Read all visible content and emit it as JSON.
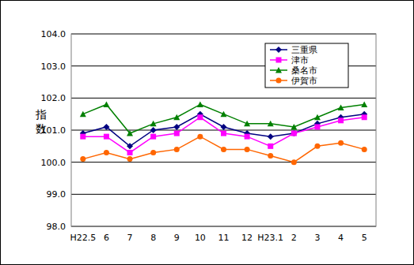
{
  "chart_data": {
    "type": "line",
    "y_label": "指数",
    "categories": [
      "H22.5",
      "6",
      "7",
      "8",
      "9",
      "10",
      "11",
      "12",
      "H23.1",
      "2",
      "3",
      "4",
      "5"
    ],
    "series": [
      {
        "name": "三重県",
        "color": "#000080",
        "marker": "diamond",
        "values": [
          100.9,
          101.1,
          100.5,
          101.0,
          101.1,
          101.5,
          101.1,
          100.9,
          100.8,
          100.9,
          101.2,
          101.4,
          101.5
        ]
      },
      {
        "name": "津市",
        "color": "#ff00ff",
        "marker": "square",
        "values": [
          100.8,
          100.8,
          100.3,
          100.8,
          100.9,
          101.4,
          100.9,
          100.8,
          100.5,
          100.9,
          101.1,
          101.3,
          101.4
        ]
      },
      {
        "name": "桑名市",
        "color": "#008000",
        "marker": "triangle",
        "values": [
          101.5,
          101.8,
          100.9,
          101.2,
          101.4,
          101.8,
          101.5,
          101.2,
          101.2,
          101.1,
          101.4,
          101.7,
          101.8
        ]
      },
      {
        "name": "伊賀市",
        "color": "#ff6600",
        "marker": "circle",
        "values": [
          100.1,
          100.3,
          100.1,
          100.3,
          100.4,
          100.8,
          100.4,
          100.4,
          100.2,
          100.0,
          100.5,
          100.6,
          100.4
        ]
      }
    ],
    "ylim": [
      98,
      104
    ],
    "yticks": [
      {
        "value": 98,
        "label": "98.0"
      },
      {
        "value": 99,
        "label": "99.0"
      },
      {
        "value": 100,
        "label": "100.0"
      },
      {
        "value": 101,
        "label": "101.0"
      },
      {
        "value": 102,
        "label": "102.0"
      },
      {
        "value": 103,
        "label": "103.0"
      },
      {
        "value": 104,
        "label": "104.0"
      }
    ],
    "grid": true,
    "legend": "upper right"
  }
}
